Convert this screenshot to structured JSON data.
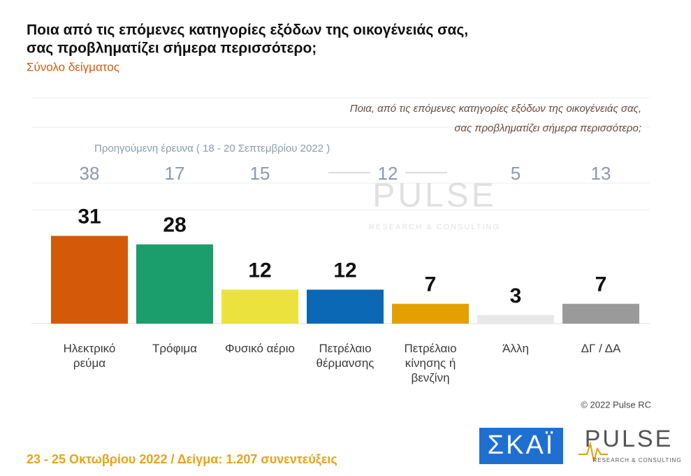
{
  "chart_data": {
    "type": "bar",
    "title": [
      "Ποια από τις επόμενες κατηγορίες εξόδων της οικογένειάς σας,",
      "σας προβληματίζει σήμερα περισσότερο;"
    ],
    "subtitle": "Σύνολο δείγματος",
    "question_note": [
      "Ποια, από τις επόμενες κατηγορίες εξόδων της οικογένειάς σας,",
      "σας προβληματίζει σήμερα περισσότερο;"
    ],
    "categories": [
      "Ηλεκτρικό ρεύμα",
      "Τρόφιμα",
      "Φυσικό αέριο",
      "Πετρέλαιο θέρμανσης",
      "Πετρέλαιο κίνησης ή βενζίνη",
      "Άλλη",
      "ΔΓ / ΔΑ"
    ],
    "values": [
      31,
      28,
      12,
      12,
      7,
      3,
      7
    ],
    "colors": [
      "#d45a0a",
      "#1b9e6c",
      "#ece23e",
      "#0a68b4",
      "#e3a000",
      "#e8e8e8",
      "#9a9a9a"
    ],
    "ylim": [
      0,
      40
    ],
    "previous_survey": {
      "label": "Προηγούμενη έρευνα ( 18 - 20 Σεπτεμβρίου 2022 )",
      "values": [
        38,
        17,
        15,
        12,
        null,
        5,
        13
      ]
    },
    "copyright": "© 2022 Pulse RC",
    "footer": "23 - 25 Οκτωβρίου 2022 / Δείγμα: 1.207 συνεντεύξεις",
    "logos": {
      "skai": "ΣΚΑΪ",
      "pulse": "PULSE",
      "pulse_tagline": "RESEARCH & CONSULTING"
    }
  }
}
